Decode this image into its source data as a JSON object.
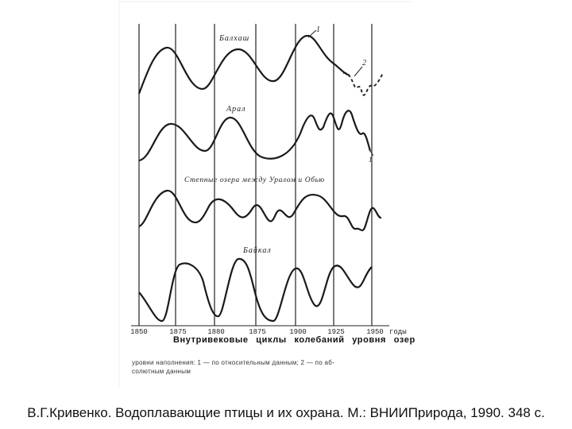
{
  "figure": {
    "title": "Внутривековые циклы колебаний уровня озер",
    "legend_line_1": "уровни наполнения:   1 — по относительным данным;   2 — по аб-",
    "legend_line_2": "солютным данным",
    "source_caption": "В.Г.Кривенко. Водоплавающие птицы и их охрана. М.: ВНИИПрирода, 1990. 348 с.",
    "year_axis_unit": "годы",
    "year_ticks": [
      "1850",
      "1875",
      "1880",
      "1875",
      "1900",
      "1925",
      "1950"
    ],
    "curve_labels": {
      "balkhash": "Балхаш",
      "aral": "Арал",
      "steppe_lakes": "Степные озера между Уралом и Обью",
      "baikal": "Байкал"
    },
    "series_markers": {
      "relative": "1",
      "absolute": "2",
      "aral_end": "1"
    }
  }
}
